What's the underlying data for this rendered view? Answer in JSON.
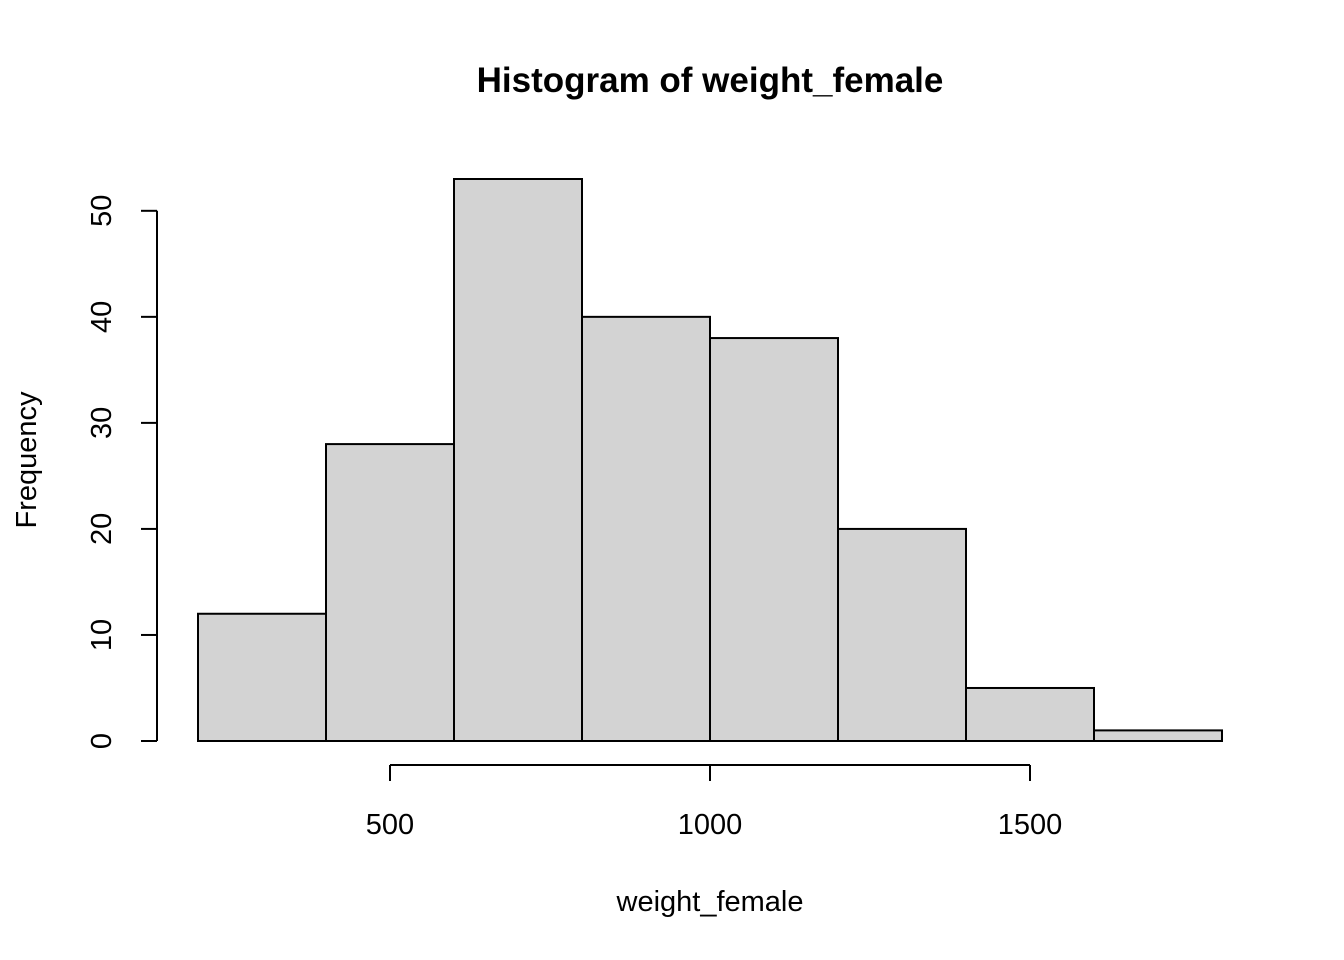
{
  "chart_data": {
    "type": "bar",
    "title": "Histogram of weight_female",
    "xlabel": "weight_female",
    "ylabel": "Frequency",
    "bins": [
      {
        "start": 200,
        "end": 400,
        "count": 12
      },
      {
        "start": 400,
        "end": 600,
        "count": 28
      },
      {
        "start": 600,
        "end": 800,
        "count": 53
      },
      {
        "start": 800,
        "end": 1000,
        "count": 40
      },
      {
        "start": 1000,
        "end": 1200,
        "count": 38
      },
      {
        "start": 1200,
        "end": 1400,
        "count": 20
      },
      {
        "start": 1400,
        "end": 1600,
        "count": 5
      },
      {
        "start": 1600,
        "end": 1800,
        "count": 1
      }
    ],
    "xticks": [
      500,
      1000,
      1500
    ],
    "yticks": [
      0,
      10,
      20,
      30,
      40,
      50
    ],
    "xlim": [
      200,
      1800
    ],
    "ylim": [
      0,
      53
    ],
    "bar_color": "#d3d3d3",
    "grid": false
  }
}
